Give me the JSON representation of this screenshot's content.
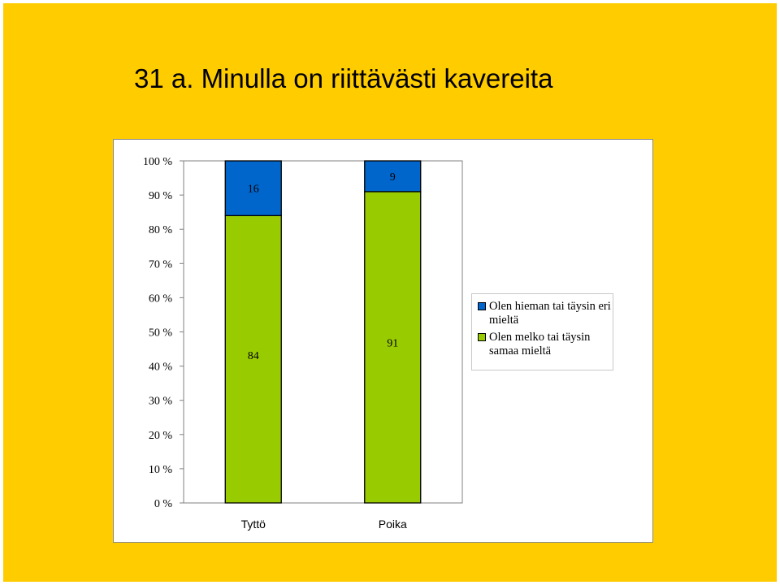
{
  "slide": {
    "title": "31 a. Minulla on riittävästi kavereita",
    "background": "#FFCC00"
  },
  "chart_data": {
    "type": "bar",
    "stacked": true,
    "percent_stacked": true,
    "categories": [
      "Tyttö",
      "Poika"
    ],
    "series": [
      {
        "name": "Olen melko tai täysin samaa mieltä",
        "values": [
          84,
          91
        ],
        "color": "#99CC00"
      },
      {
        "name": "Olen hieman tai täysin eri mieltä",
        "values": [
          16,
          9
        ],
        "color": "#0066CC"
      }
    ],
    "data_labels": [
      [
        "84",
        "91"
      ],
      [
        "16",
        "9"
      ]
    ],
    "yticks": [
      "0 %",
      "10 %",
      "20 %",
      "30 %",
      "40 %",
      "50 %",
      "60 %",
      "70 %",
      "80 %",
      "90 %",
      "100 %"
    ],
    "ylim": [
      0,
      100
    ],
    "grid": false,
    "legend_position": "right",
    "legend_order": [
      1,
      0
    ]
  }
}
